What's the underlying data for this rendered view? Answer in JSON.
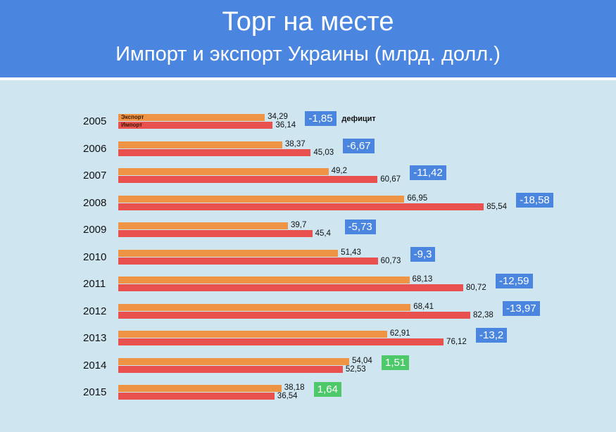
{
  "header": {
    "title": "Торг на месте",
    "subtitle": "Импорт и экспорт Украины (млрд. долл.)"
  },
  "colors": {
    "export": "#ef9444",
    "import": "#e8514e",
    "deficit": "#4a86e0",
    "surplus": "#4dc96a",
    "header": "#4a86e0",
    "background": "#cfe6f1"
  },
  "chart_data": {
    "type": "bar",
    "orientation": "horizontal",
    "title": "Торг на месте",
    "subtitle": "Импорт и экспорт Украины (млрд. долл.)",
    "categories": [
      "2005",
      "2006",
      "2007",
      "2008",
      "2009",
      "2010",
      "2011",
      "2012",
      "2013",
      "2014",
      "2015"
    ],
    "series": [
      {
        "name": "Экспорт",
        "values": [
          34.29,
          38.37,
          49.2,
          66.95,
          39.7,
          51.43,
          68.13,
          68.41,
          62.91,
          54.04,
          38.18
        ],
        "labels": [
          "34,29",
          "38,37",
          "49,2",
          "66,95",
          "39,7",
          "51,43",
          "68,13",
          "68,41",
          "62,91",
          "54,04",
          "38,18"
        ]
      },
      {
        "name": "Импорт",
        "values": [
          36.14,
          45.03,
          60.67,
          85.54,
          45.4,
          60.73,
          80.72,
          82.38,
          76.12,
          52.53,
          36.54
        ],
        "labels": [
          "36,14",
          "45,03",
          "60,67",
          "85,54",
          "45,4",
          "60,73",
          "80,72",
          "82,38",
          "76,12",
          "52,53",
          "36,54"
        ]
      }
    ],
    "balance": {
      "values": [
        -1.85,
        -6.67,
        -11.42,
        -18.58,
        -5.73,
        -9.3,
        -12.59,
        -13.97,
        -13.2,
        1.51,
        1.64
      ],
      "labels": [
        "-1,85",
        "-6,67",
        "-11,42",
        "-18,58",
        "-5,73",
        "-9,3",
        "-12,59",
        "-13,97",
        "-13,2",
        "1,51",
        "1,64"
      ],
      "annotation": "дефицит"
    },
    "legend": {
      "export": "Экспорт",
      "import": "Импорт",
      "placement": "inline-first-row"
    }
  }
}
